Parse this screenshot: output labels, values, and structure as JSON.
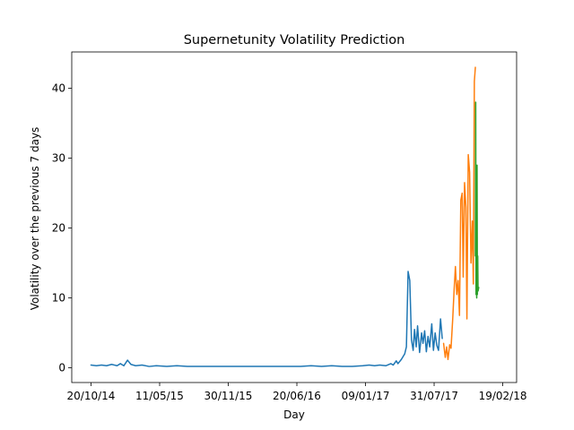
{
  "chart_data": {
    "type": "line",
    "title": "Supernetunity Volatility Prediction",
    "xlabel": "Day",
    "ylabel": "Volatility over the previous 7 days",
    "x_ticks": [
      "20/10/14",
      "11/05/15",
      "30/11/15",
      "20/06/16",
      "09/01/17",
      "31/07/17",
      "19/02/18"
    ],
    "y_ticks": [
      0,
      10,
      20,
      30,
      40
    ],
    "xlim": [
      "2014-08-24",
      "2018-04-01"
    ],
    "ylim": [
      -2.1,
      45.2
    ],
    "grid": false,
    "colors": {
      "blue": "#1f77b4",
      "orange": "#ff7f0e",
      "green": "#2ca02c"
    },
    "series": [
      {
        "color": "#1f77b4",
        "points": [
          [
            "2014-10-20",
            0.4
          ],
          [
            "2014-11-05",
            0.3
          ],
          [
            "2014-11-20",
            0.4
          ],
          [
            "2014-12-05",
            0.3
          ],
          [
            "2014-12-20",
            0.5
          ],
          [
            "2015-01-05",
            0.3
          ],
          [
            "2015-01-15",
            0.6
          ],
          [
            "2015-01-25",
            0.3
          ],
          [
            "2015-02-05",
            1.1
          ],
          [
            "2015-02-15",
            0.5
          ],
          [
            "2015-03-01",
            0.3
          ],
          [
            "2015-03-20",
            0.4
          ],
          [
            "2015-04-10",
            0.2
          ],
          [
            "2015-05-01",
            0.3
          ],
          [
            "2015-06-01",
            0.2
          ],
          [
            "2015-07-01",
            0.3
          ],
          [
            "2015-08-01",
            0.2
          ],
          [
            "2015-09-01",
            0.2
          ],
          [
            "2015-10-01",
            0.2
          ],
          [
            "2015-11-01",
            0.2
          ],
          [
            "2015-12-01",
            0.2
          ],
          [
            "2016-01-01",
            0.2
          ],
          [
            "2016-02-01",
            0.2
          ],
          [
            "2016-03-01",
            0.2
          ],
          [
            "2016-04-01",
            0.2
          ],
          [
            "2016-05-01",
            0.2
          ],
          [
            "2016-06-01",
            0.2
          ],
          [
            "2016-07-01",
            0.2
          ],
          [
            "2016-08-01",
            0.3
          ],
          [
            "2016-09-01",
            0.2
          ],
          [
            "2016-10-01",
            0.3
          ],
          [
            "2016-11-01",
            0.2
          ],
          [
            "2016-12-01",
            0.2
          ],
          [
            "2017-01-01",
            0.3
          ],
          [
            "2017-01-20",
            0.4
          ],
          [
            "2017-02-05",
            0.3
          ],
          [
            "2017-02-20",
            0.4
          ],
          [
            "2017-03-10",
            0.3
          ],
          [
            "2017-03-25",
            0.6
          ],
          [
            "2017-04-01",
            0.4
          ],
          [
            "2017-04-10",
            1.0
          ],
          [
            "2017-04-15",
            0.6
          ],
          [
            "2017-04-25",
            1.2
          ],
          [
            "2017-05-05",
            2.0
          ],
          [
            "2017-05-10",
            3.0
          ],
          [
            "2017-05-15",
            13.8
          ],
          [
            "2017-05-20",
            12.5
          ],
          [
            "2017-05-25",
            4.0
          ],
          [
            "2017-05-30",
            2.5
          ],
          [
            "2017-06-03",
            5.5
          ],
          [
            "2017-06-08",
            3.0
          ],
          [
            "2017-06-12",
            6.0
          ],
          [
            "2017-06-18",
            2.2
          ],
          [
            "2017-06-24",
            5.0
          ],
          [
            "2017-06-28",
            3.5
          ],
          [
            "2017-07-03",
            5.3
          ],
          [
            "2017-07-08",
            2.3
          ],
          [
            "2017-07-13",
            4.5
          ],
          [
            "2017-07-18",
            3.0
          ],
          [
            "2017-07-24",
            6.3
          ],
          [
            "2017-07-29",
            2.5
          ],
          [
            "2017-08-03",
            5.0
          ],
          [
            "2017-08-08",
            3.2
          ],
          [
            "2017-08-13",
            2.5
          ],
          [
            "2017-08-19",
            7.0
          ],
          [
            "2017-08-24",
            4.2
          ]
        ]
      },
      {
        "color": "#ff7f0e",
        "points": [
          [
            "2017-08-28",
            3.5
          ],
          [
            "2017-09-02",
            1.5
          ],
          [
            "2017-09-06",
            3.0
          ],
          [
            "2017-09-10",
            1.2
          ],
          [
            "2017-09-15",
            3.3
          ],
          [
            "2017-09-19",
            2.8
          ],
          [
            "2017-09-24",
            7.0
          ],
          [
            "2017-09-28",
            11.0
          ],
          [
            "2017-10-02",
            14.5
          ],
          [
            "2017-10-06",
            10.5
          ],
          [
            "2017-10-10",
            12.5
          ],
          [
            "2017-10-14",
            7.5
          ],
          [
            "2017-10-18",
            24.0
          ],
          [
            "2017-10-22",
            25.0
          ],
          [
            "2017-10-25",
            13.0
          ],
          [
            "2017-10-29",
            26.5
          ],
          [
            "2017-11-02",
            23.0
          ],
          [
            "2017-11-05",
            7.0
          ],
          [
            "2017-11-09",
            30.5
          ],
          [
            "2017-11-13",
            28.0
          ],
          [
            "2017-11-17",
            15.0
          ],
          [
            "2017-11-21",
            21.0
          ],
          [
            "2017-11-24",
            12.0
          ],
          [
            "2017-11-27",
            41.0
          ],
          [
            "2017-11-30",
            43.0
          ]
        ]
      },
      {
        "color": "#2ca02c",
        "points": [
          [
            "2017-11-30",
            16.0
          ],
          [
            "2017-12-01",
            38.0
          ],
          [
            "2017-12-02",
            10.5
          ],
          [
            "2017-12-03",
            12.0
          ],
          [
            "2017-12-04",
            10.0
          ],
          [
            "2017-12-05",
            29.0
          ],
          [
            "2017-12-06",
            10.5
          ],
          [
            "2017-12-07",
            16.0
          ],
          [
            "2017-12-08",
            11.0
          ],
          [
            "2017-12-10",
            11.5
          ]
        ]
      }
    ]
  }
}
